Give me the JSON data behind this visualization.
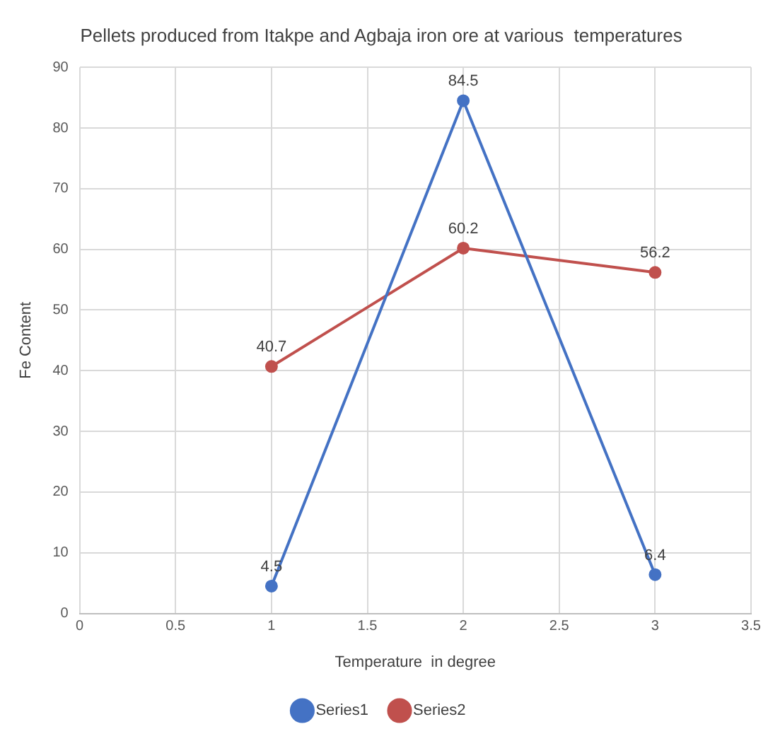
{
  "chart_data": {
    "type": "line",
    "title": "Pellets produced from Itakpe and Agbaja iron ore at various  temperatures",
    "xlabel": "Temperature  in degree",
    "ylabel": "Fe Content",
    "xlim": [
      0,
      3.5
    ],
    "xticks": [
      0,
      0.5,
      1,
      1.5,
      2,
      2.5,
      3,
      3.5
    ],
    "ylim": [
      0,
      90
    ],
    "yticks": [
      0,
      10,
      20,
      30,
      40,
      50,
      60,
      70,
      80,
      90
    ],
    "x": [
      1,
      2,
      3
    ],
    "series": [
      {
        "name": "Series1",
        "color": "#4472c4",
        "values": [
          4.5,
          84.5,
          6.4
        ]
      },
      {
        "name": "Series2",
        "color": "#c0504d",
        "values": [
          40.7,
          60.2,
          56.2
        ]
      }
    ],
    "data_labels": true,
    "grid": true,
    "legend": "bottom",
    "marker": "circle",
    "line_style": "solid"
  }
}
